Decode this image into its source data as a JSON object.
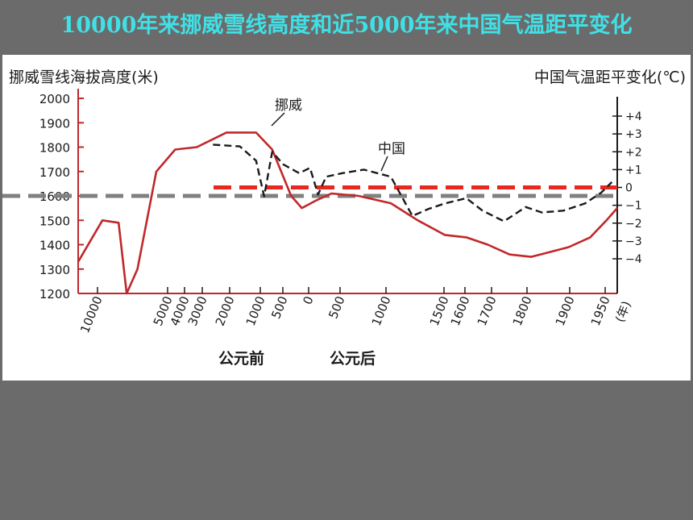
{
  "slide": {
    "title": "10000年来挪威雪线高度和近5000年来中国气温距平变化"
  },
  "colors": {
    "background": "#6b6b6b",
    "title": "#3fe0e6",
    "norway_line": "#c0282b",
    "china_line": "#1a1a1a",
    "gray_ref": "#808080",
    "red_ref": "#e8281e"
  },
  "chart_data": {
    "type": "line",
    "y_left_label": "挪威雪线海拔高度(米)",
    "y_right_label": "中国气温距平变化(℃)",
    "x_ticks": [
      "10000",
      "5000",
      "4000",
      "3000",
      "2000",
      "1000",
      "500",
      "0",
      "500",
      "1000",
      "1500",
      "1600",
      "1700",
      "1800",
      "1900",
      "1950"
    ],
    "x_unit": "(年)",
    "era_labels": [
      "公元前",
      "公元后"
    ],
    "y_left_ticks": [
      2000,
      1900,
      1800,
      1700,
      1600,
      1500,
      1400,
      1300,
      1200
    ],
    "y_left_range": [
      1200,
      2000
    ],
    "y_right_ticks": [
      "+4",
      "+3",
      "+2",
      "+1",
      "0",
      "−1",
      "−2",
      "−3",
      "−4"
    ],
    "y_right_range": [
      -4,
      4
    ],
    "series": [
      {
        "name": "挪威",
        "style": "solid",
        "points": [
          [
            0.0,
            1330
          ],
          [
            0.045,
            1500
          ],
          [
            0.075,
            1490
          ],
          [
            0.09,
            1200
          ],
          [
            0.11,
            1300
          ],
          [
            0.145,
            1700
          ],
          [
            0.18,
            1790
          ],
          [
            0.22,
            1800
          ],
          [
            0.275,
            1860
          ],
          [
            0.33,
            1860
          ],
          [
            0.36,
            1790
          ],
          [
            0.395,
            1600
          ],
          [
            0.415,
            1550
          ],
          [
            0.44,
            1580
          ],
          [
            0.47,
            1610
          ],
          [
            0.52,
            1600
          ],
          [
            0.58,
            1570
          ],
          [
            0.63,
            1500
          ],
          [
            0.68,
            1440
          ],
          [
            0.72,
            1430
          ],
          [
            0.76,
            1400
          ],
          [
            0.8,
            1360
          ],
          [
            0.84,
            1350
          ],
          [
            0.875,
            1370
          ],
          [
            0.91,
            1390
          ],
          [
            0.95,
            1430
          ],
          [
            0.98,
            1500
          ],
          [
            1.0,
            1550
          ]
        ]
      },
      {
        "name": "中国",
        "style": "dashed",
        "points": [
          [
            0.25,
            2.4
          ],
          [
            0.3,
            2.3
          ],
          [
            0.33,
            1.5
          ],
          [
            0.345,
            -0.5
          ],
          [
            0.36,
            2.0
          ],
          [
            0.38,
            1.3
          ],
          [
            0.41,
            0.8
          ],
          [
            0.43,
            1.1
          ],
          [
            0.445,
            -0.4
          ],
          [
            0.46,
            0.6
          ],
          [
            0.49,
            0.8
          ],
          [
            0.53,
            1.0
          ],
          [
            0.58,
            0.6
          ],
          [
            0.62,
            -1.6
          ],
          [
            0.65,
            -1.2
          ],
          [
            0.68,
            -0.9
          ],
          [
            0.72,
            -0.6
          ],
          [
            0.75,
            -1.3
          ],
          [
            0.79,
            -1.9
          ],
          [
            0.83,
            -1.1
          ],
          [
            0.86,
            -1.4
          ],
          [
            0.9,
            -1.3
          ],
          [
            0.94,
            -0.9
          ],
          [
            0.97,
            -0.3
          ],
          [
            0.99,
            0.3
          ]
        ]
      }
    ],
    "reference_lines": [
      {
        "color": "gray",
        "value_left": 1600
      },
      {
        "color": "red",
        "value_right": 0
      }
    ]
  }
}
